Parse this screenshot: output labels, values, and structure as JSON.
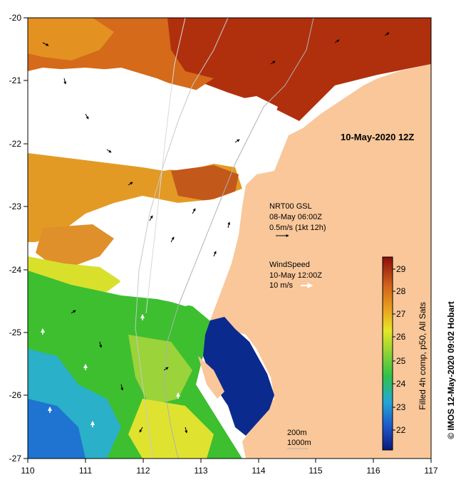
{
  "map": {
    "date_title": "10-May-2020 12Z",
    "x_ticks": [
      "110",
      "111",
      "112",
      "113",
      "114",
      "115",
      "116",
      "117"
    ],
    "y_ticks": [
      "-20",
      "-21",
      "-22",
      "-23",
      "-24",
      "-25",
      "-26",
      "-27"
    ],
    "current_label_1": "NRT00 GSL",
    "current_label_2": "08-May 06:00Z",
    "current_label_3": "0.5m/s (1kt 12h)",
    "wind_label_1": "WindSpeed",
    "wind_label_2": "10-May 12:00Z",
    "wind_label_3": "10 m/s",
    "contour_label_1": "200m",
    "contour_label_2": "1000m",
    "colorbar_ticks": [
      "29",
      "28",
      "27",
      "26",
      "25",
      "24",
      "23",
      "22"
    ],
    "colorbar_label": "Filled 4h comp, p50, All Sats",
    "credit": "© IMOS 12-May-2020 09:02 Hobart",
    "colors": {
      "land": "#f9c79a",
      "cloud": "#ffffff",
      "sst_hot": "#a81c0c",
      "sst_warm": "#e08a18",
      "sst_mid": "#e6e629",
      "sst_cool": "#36bf2f",
      "sst_cold": "#0a2a8c"
    }
  }
}
